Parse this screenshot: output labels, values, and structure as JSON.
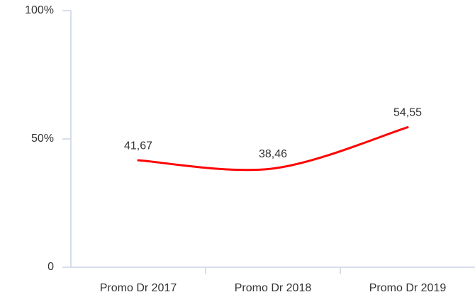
{
  "chart_data": {
    "type": "line",
    "categories": [
      "Promo Dr 2017",
      "Promo Dr 2018",
      "Promo Dr 2019"
    ],
    "values": [
      41.67,
      38.46,
      54.55
    ],
    "value_labels": [
      "41,67",
      "38,46",
      "54,55"
    ],
    "color": "#ff0000",
    "ylim": [
      0,
      100
    ],
    "yticks": [
      0,
      {
        "value": 50,
        "label": "50%"
      },
      {
        "value": 100,
        "label": "100%"
      }
    ],
    "smooth": true
  }
}
